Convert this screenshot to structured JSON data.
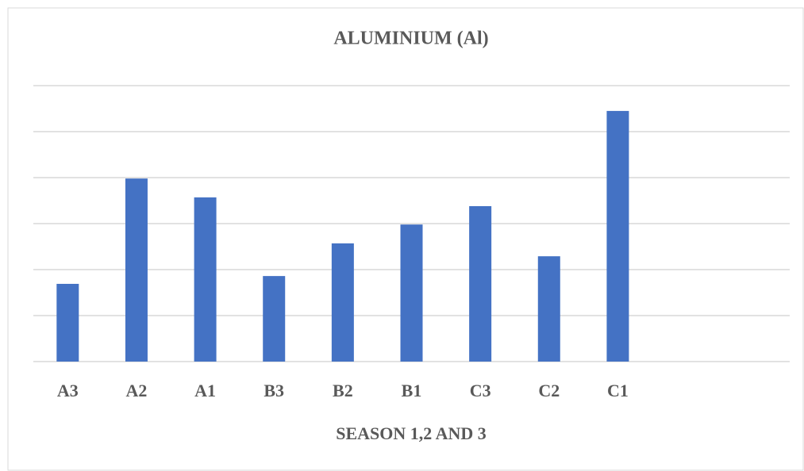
{
  "chart_data": {
    "type": "bar",
    "title": "ALUMINIUM (Al)",
    "x_label": "SEASON 1,2 AND 3",
    "categories": [
      "A3",
      "A2",
      "A1",
      "B3",
      "B2",
      "B1",
      "C3",
      "C2",
      "C1",
      null,
      null
    ],
    "values": [
      1.69,
      3.98,
      3.57,
      1.86,
      2.57,
      2.98,
      3.38,
      2.29,
      5.45,
      null,
      null
    ],
    "color": "#4472c4",
    "ylim": [
      0,
      6
    ],
    "yticks": [
      0,
      1,
      2,
      3,
      4,
      5,
      6
    ],
    "grid": true
  }
}
